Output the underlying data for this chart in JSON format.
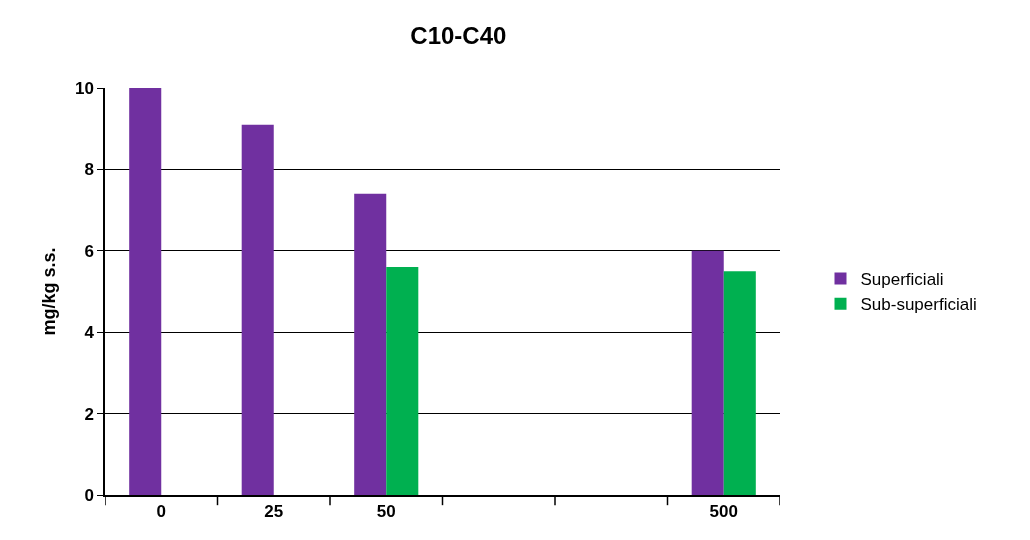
{
  "chart_data": {
    "type": "bar",
    "title": "C10-C40",
    "ylabel": "mg/kg s.s.",
    "categories": [
      "0",
      "25",
      "50",
      null,
      null,
      "500"
    ],
    "series": [
      {
        "name": "Superficiali",
        "color": "#7030a0",
        "values": [
          10,
          9.1,
          7.4,
          null,
          null,
          6.0
        ]
      },
      {
        "name": "Sub-superficiali",
        "color": "#00b050",
        "values": [
          null,
          null,
          5.6,
          null,
          null,
          5.5
        ]
      }
    ],
    "ylim": [
      0,
      10
    ],
    "yticks": [
      0,
      2,
      4,
      6,
      8,
      10
    ],
    "grid": "y",
    "legend": "right"
  }
}
